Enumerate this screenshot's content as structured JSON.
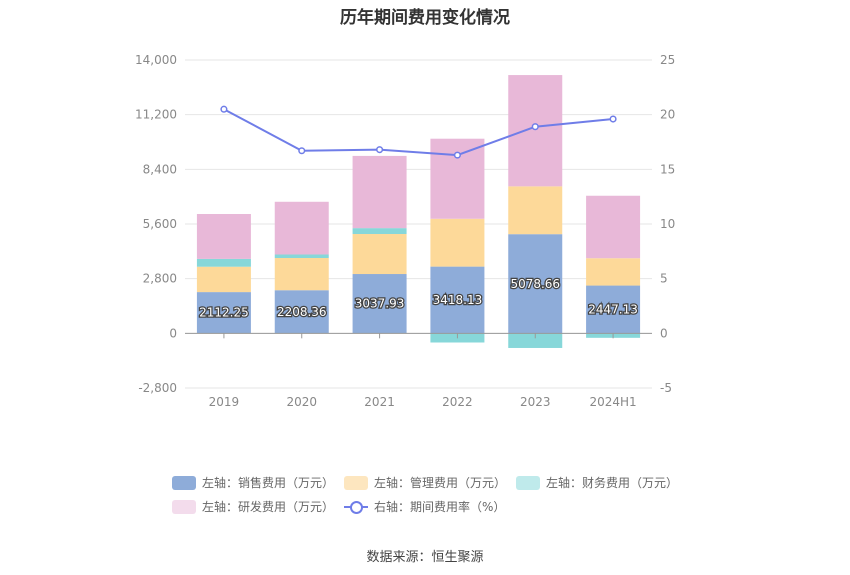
{
  "chart_data": {
    "type": "bar",
    "title": "历年期间费用变化情况",
    "categories": [
      "2019",
      "2020",
      "2021",
      "2022",
      "2023",
      "2024H1"
    ],
    "series": [
      {
        "name": "左轴：销售费用（万元）",
        "axis": "left",
        "type": "bar",
        "color": "#8eacd9",
        "values": [
          2112.25,
          2208.36,
          3037.93,
          3418.13,
          5078.66,
          2447.13
        ]
      },
      {
        "name": "左轴：管理费用（万元）",
        "axis": "left",
        "type": "bar",
        "color": "#fdd999",
        "values": [
          1300,
          1650,
          2050,
          2450,
          2450,
          1400
        ]
      },
      {
        "name": "左轴：财务费用（万元）",
        "axis": "left",
        "type": "bar",
        "color": "#87d7d9",
        "values": [
          400,
          180,
          300,
          -470,
          -750,
          -230
        ]
      },
      {
        "name": "左轴：研发费用（万元）",
        "axis": "left",
        "type": "bar",
        "color": "#e8b8d8",
        "values": [
          2300,
          2700,
          3700,
          4100,
          5700,
          3200
        ]
      },
      {
        "name": "右轴：期间费用率（%）",
        "axis": "right",
        "type": "line",
        "color": "#6f7de8",
        "values": [
          20.5,
          16.7,
          16.8,
          16.3,
          18.9,
          19.6
        ]
      }
    ],
    "data_labels": [
      "2112.25",
      "2208.36",
      "3037.93",
      "3418.13",
      "5078.66",
      "2447.13"
    ],
    "left_axis": {
      "min": -2800,
      "max": 14000,
      "ticks": [
        -2800,
        0,
        2800,
        5600,
        8400,
        11200,
        14000
      ],
      "tick_labels": [
        "-2,800",
        "0",
        "2,800",
        "5,600",
        "8,400",
        "11,200",
        "14,000"
      ]
    },
    "right_axis": {
      "min": -5,
      "max": 25,
      "ticks": [
        -5,
        0,
        5,
        10,
        15,
        20,
        25
      ],
      "tick_labels": [
        "-5",
        "0",
        "5",
        "10",
        "15",
        "20",
        "25"
      ]
    },
    "grid": true
  },
  "legend": {
    "sales": "左轴：销售费用（万元）",
    "admin": "左轴：管理费用（万元）",
    "finance": "左轴：财务费用（万元）",
    "rnd": "左轴：研发费用（万元）",
    "rate": "右轴：期间费用率（%）",
    "colors": {
      "sales": "#8eacd9",
      "admin": "#fde6bf",
      "finance": "#bfeaeb",
      "rnd": "#f3dcec"
    }
  },
  "source": "数据来源：恒生聚源"
}
